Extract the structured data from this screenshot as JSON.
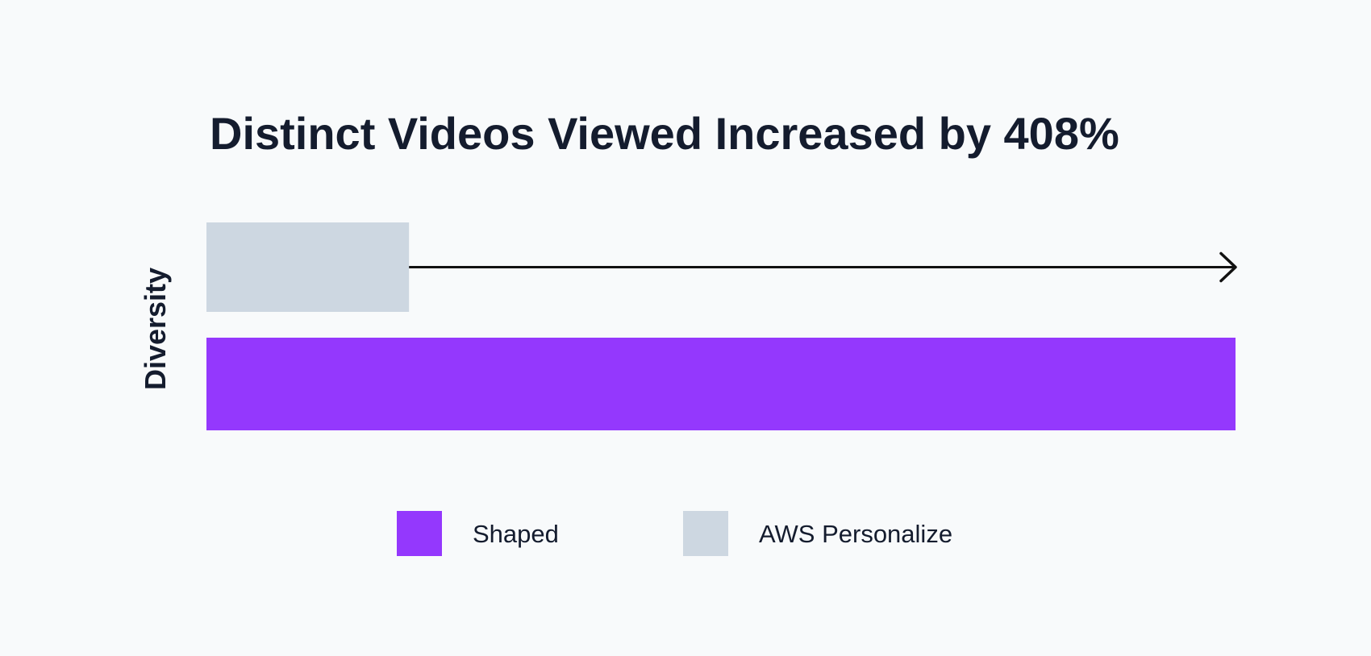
{
  "chart_data": {
    "type": "bar",
    "orientation": "horizontal",
    "title": "Distinct Videos Viewed Increased by 408%",
    "xlabel": "",
    "ylabel": "Diversity",
    "grid": false,
    "legend_position": "bottom",
    "xlim": [
      0,
      508
    ],
    "series": [
      {
        "name": "AWS Personalize",
        "value": 100,
        "color": "#cdd7e1"
      },
      {
        "name": "Shaped",
        "value": 508,
        "color": "#9438fd"
      }
    ],
    "legend": [
      {
        "label": "Shaped",
        "color": "#9438fd"
      },
      {
        "label": "AWS Personalize",
        "color": "#cdd7e1"
      }
    ],
    "annotations": [
      {
        "type": "arrow",
        "from_series": "AWS Personalize",
        "to_series": "Shaped",
        "color": "#111111"
      }
    ]
  }
}
